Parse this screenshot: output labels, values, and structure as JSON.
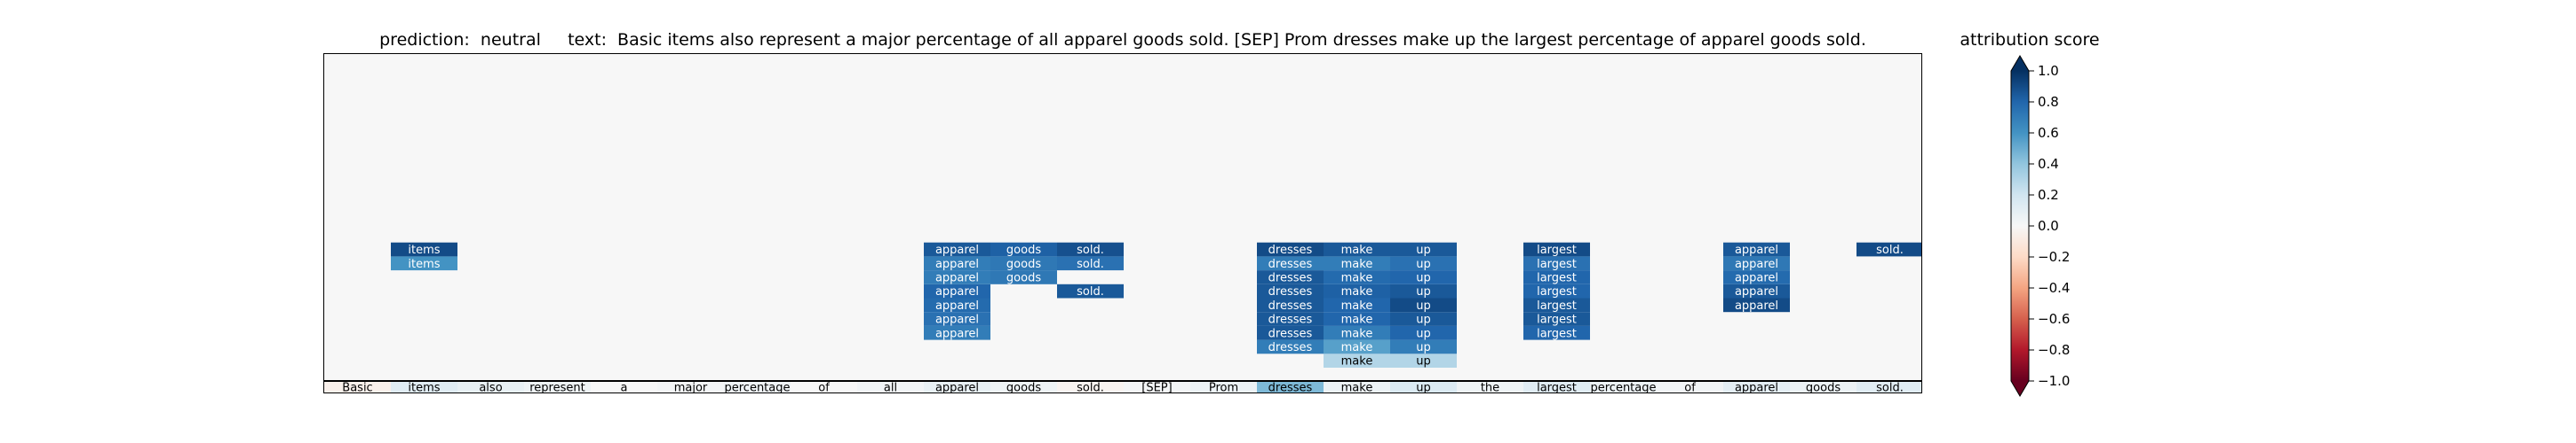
{
  "title": "prediction:  neutral     text:  Basic items also represent a major percentage of all apparel goods sold. [SEP] Prom dresses make up the largest percentage of apparel goods sold.",
  "colorbar": {
    "label": "attribution score",
    "ticks": [
      "1.0",
      "0.8",
      "0.6",
      "0.4",
      "0.2",
      "0.0",
      "−0.2",
      "−0.4",
      "−0.6",
      "−0.8",
      "−1.0"
    ]
  },
  "chart_data": {
    "type": "heatmap",
    "title": "prediction:  neutral     text:  Basic items also represent a major percentage of all apparel goods sold. [SEP] Prom dresses make up the largest percentage of apparel goods sold.",
    "colormap": "RdBu",
    "vmin": -1.0,
    "vmax": 1.0,
    "tokens": [
      "Basic",
      "items",
      "also",
      "represent",
      "a",
      "major",
      "percentage",
      "of",
      "all",
      "apparel",
      "goods",
      "sold.",
      "[SEP]",
      "Prom",
      "dresses",
      "make",
      "up",
      "the",
      "largest",
      "percentage",
      "of",
      "apparel",
      "goods",
      "sold."
    ],
    "token_scores": [
      -0.05,
      0.12,
      0.08,
      0.05,
      0.0,
      0.02,
      0.04,
      0.0,
      0.03,
      0.08,
      0.05,
      -0.03,
      0.02,
      0.06,
      0.45,
      0.06,
      0.15,
      0.05,
      0.12,
      0.06,
      0.03,
      0.1,
      0.06,
      0.12
    ],
    "rows": [
      {
        "row": 1,
        "cells": [
          [
            15,
            0.3
          ],
          [
            16,
            0.3
          ]
        ]
      },
      {
        "row": 2,
        "cells": [
          [
            14,
            0.7
          ],
          [
            15,
            0.55
          ],
          [
            16,
            0.7
          ]
        ]
      },
      {
        "row": 3,
        "cells": [
          [
            9,
            0.7
          ],
          [
            14,
            0.85
          ],
          [
            15,
            0.7
          ],
          [
            16,
            0.8
          ],
          [
            18,
            0.8
          ]
        ]
      },
      {
        "row": 4,
        "cells": [
          [
            9,
            0.75
          ],
          [
            14,
            0.85
          ],
          [
            15,
            0.8
          ],
          [
            16,
            0.85
          ],
          [
            18,
            0.85
          ]
        ]
      },
      {
        "row": 5,
        "cells": [
          [
            9,
            0.78
          ],
          [
            14,
            0.85
          ],
          [
            15,
            0.8
          ],
          [
            16,
            0.9
          ],
          [
            18,
            0.85
          ],
          [
            21,
            0.9
          ]
        ]
      },
      {
        "row": 6,
        "cells": [
          [
            9,
            0.8
          ],
          [
            11,
            0.85
          ],
          [
            14,
            0.85
          ],
          [
            15,
            0.82
          ],
          [
            16,
            0.85
          ],
          [
            18,
            0.8
          ],
          [
            21,
            0.85
          ]
        ]
      },
      {
        "row": 7,
        "cells": [
          [
            9,
            0.7
          ],
          [
            10,
            0.72
          ],
          [
            14,
            0.85
          ],
          [
            15,
            0.78
          ],
          [
            16,
            0.8
          ],
          [
            18,
            0.8
          ],
          [
            21,
            0.78
          ]
        ]
      },
      {
        "row": 8,
        "cells": [
          [
            1,
            0.6
          ],
          [
            9,
            0.7
          ],
          [
            10,
            0.72
          ],
          [
            11,
            0.75
          ],
          [
            14,
            0.7
          ],
          [
            15,
            0.7
          ],
          [
            16,
            0.75
          ],
          [
            18,
            0.75
          ],
          [
            21,
            0.72
          ]
        ]
      },
      {
        "row": 9,
        "cells": [
          [
            1,
            0.9
          ],
          [
            9,
            0.85
          ],
          [
            10,
            0.82
          ],
          [
            11,
            0.88
          ],
          [
            14,
            0.9
          ],
          [
            15,
            0.85
          ],
          [
            16,
            0.85
          ],
          [
            18,
            0.9
          ],
          [
            21,
            0.85
          ],
          [
            23,
            0.9
          ]
        ]
      }
    ]
  }
}
